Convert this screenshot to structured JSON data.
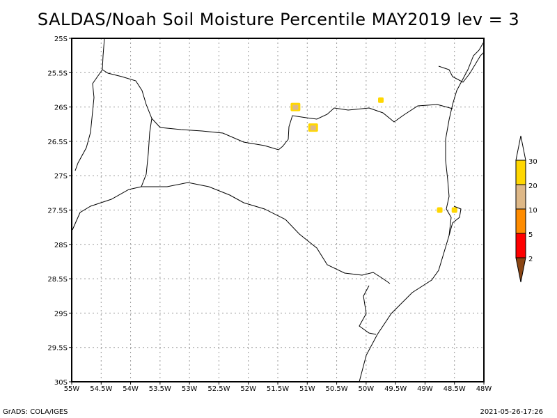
{
  "title": "SALDAS/Noah Soil Moisture Percentile MAY2019 lev = 3",
  "footer": {
    "left": "GrADS: COLA/IGES",
    "right": "2021-05-26-17:26"
  },
  "map": {
    "lon_range": [
      -55,
      -48
    ],
    "lat_range": [
      -30,
      -25
    ],
    "grid": "dotted",
    "x_tick_labels": [
      "55W",
      "54.5W",
      "54W",
      "53.5W",
      "53W",
      "52.5W",
      "52W",
      "51.5W",
      "51W",
      "50.5W",
      "50W",
      "49.5W",
      "49W",
      "48.5W",
      "48W"
    ],
    "y_tick_labels": [
      "25S",
      "25.5S",
      "26S",
      "26.5S",
      "27S",
      "27.5S",
      "28S",
      "28.5S",
      "29S",
      "29.5S",
      "30S"
    ],
    "colorbar": {
      "placement": "right",
      "labels": [
        "2",
        "5",
        "10",
        "20",
        "30"
      ],
      "colors": [
        "#8b4513",
        "#ff0000",
        "#ff8c00",
        "#deb887",
        "#ffd700",
        "#ffffff"
      ]
    },
    "shaded_regions": [
      {
        "lon": -51.2,
        "lat": -26.0,
        "class": "20-30 with 10-20 core"
      },
      {
        "lon": -50.9,
        "lat": -26.3,
        "class": "20-30 with 10-20 core"
      },
      {
        "lon": -49.75,
        "lat": -25.9,
        "class": "20-30"
      },
      {
        "lon": -48.75,
        "lat": -27.5,
        "class": "20-30"
      },
      {
        "lon": -48.5,
        "lat": -27.5,
        "class": "20-30"
      }
    ]
  }
}
